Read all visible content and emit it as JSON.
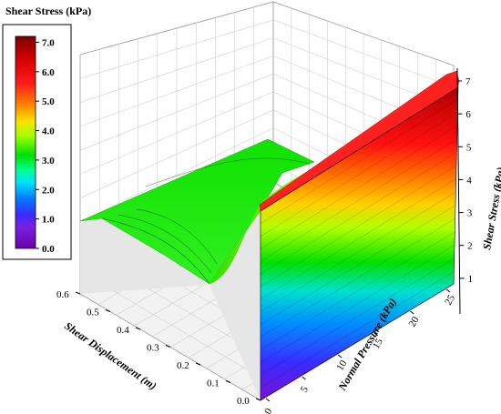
{
  "chart_data": {
    "type": "surface3d",
    "title": "",
    "colorbar": {
      "title": "Shear Stress (kPa)",
      "min": 0.0,
      "max": 7.2,
      "ticks": [
        "0.0",
        "1.0",
        "2.0",
        "3.0",
        "4.0",
        "5.0",
        "6.0",
        "7.0"
      ],
      "tick_values": [
        0,
        1,
        2,
        3,
        4,
        5,
        6,
        7
      ],
      "colors": [
        "#6a00a8",
        "#3a2bff",
        "#00a0ff",
        "#00e8e8",
        "#00e000",
        "#c8ff00",
        "#ffd000",
        "#ff6000",
        "#ff1010",
        "#8b0000"
      ]
    },
    "x_axis": {
      "label": "Normal Pressure (kPa)",
      "range": [
        0,
        25
      ],
      "ticks": [
        "0",
        "5",
        "10",
        "15",
        "20",
        "25"
      ]
    },
    "y_axis": {
      "label": "Shear Displacement (m)",
      "range": [
        0.0,
        0.6
      ],
      "ticks": [
        "0.0",
        "0.1",
        "0.2",
        "0.3",
        "0.4",
        "0.5",
        "0.6"
      ]
    },
    "z_axis": {
      "label": "Shear Stress (kPa)",
      "range": [
        0,
        7.4
      ],
      "ticks": [
        "1",
        "2",
        "3",
        "4",
        "5",
        "6",
        "7"
      ]
    },
    "surface": {
      "description_values": {
        "peak_shear_stress_at_25kPa": 7.2,
        "residual_plateau_shear_stress": 3.0,
        "displacement_of_peak": 0.01
      }
    },
    "grid": true
  }
}
